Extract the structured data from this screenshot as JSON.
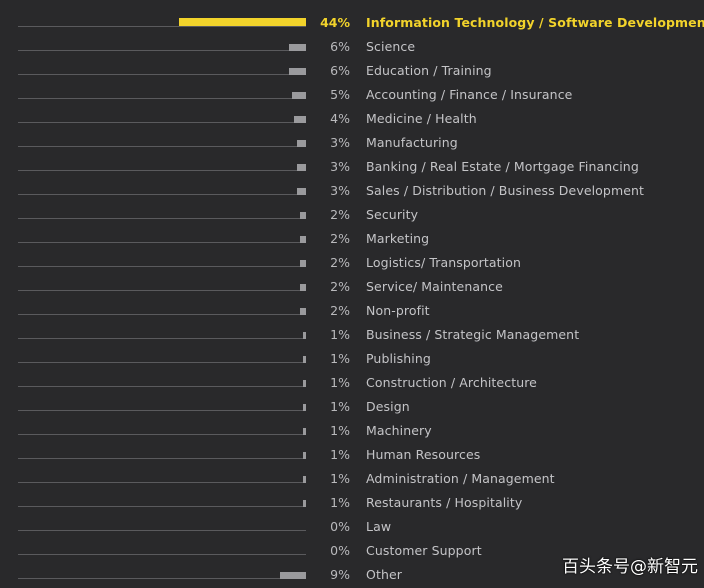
{
  "colors": {
    "background": "#29292b",
    "bar": "#9a9a9d",
    "highlight": "#f2d32b",
    "baseline": "#5a5a5d",
    "text": "#c4c4c7"
  },
  "watermark": "百头条号@新智元",
  "chart_data": {
    "type": "bar",
    "orientation": "horizontal",
    "unit": "%",
    "xlim": [
      0,
      44
    ],
    "grid": false,
    "highlight_index": 0,
    "categories": [
      "Information Technology / Software Development",
      "Science",
      "Education / Training",
      "Accounting / Finance / Insurance",
      "Medicine / Health",
      "Manufacturing",
      "Banking / Real Estate / Mortgage Financing",
      "Sales / Distribution / Business Development",
      "Security",
      "Marketing",
      "Logistics/ Transportation",
      "Service/ Maintenance",
      "Non-profit",
      "Business / Strategic Management",
      "Publishing",
      "Construction / Architecture",
      "Design",
      "Machinery",
      "Human Resources",
      "Administration / Management",
      "Restaurants / Hospitality",
      "Law",
      "Customer Support",
      "Other"
    ],
    "values": [
      44,
      6,
      6,
      5,
      4,
      3,
      3,
      3,
      2,
      2,
      2,
      2,
      2,
      1,
      1,
      1,
      1,
      1,
      1,
      1,
      1,
      0,
      0,
      9
    ],
    "value_labels": [
      "44%",
      "6%",
      "6%",
      "5%",
      "4%",
      "3%",
      "3%",
      "3%",
      "2%",
      "2%",
      "2%",
      "2%",
      "2%",
      "1%",
      "1%",
      "1%",
      "1%",
      "1%",
      "1%",
      "1%",
      "1%",
      "0%",
      "0%",
      "9%"
    ]
  }
}
